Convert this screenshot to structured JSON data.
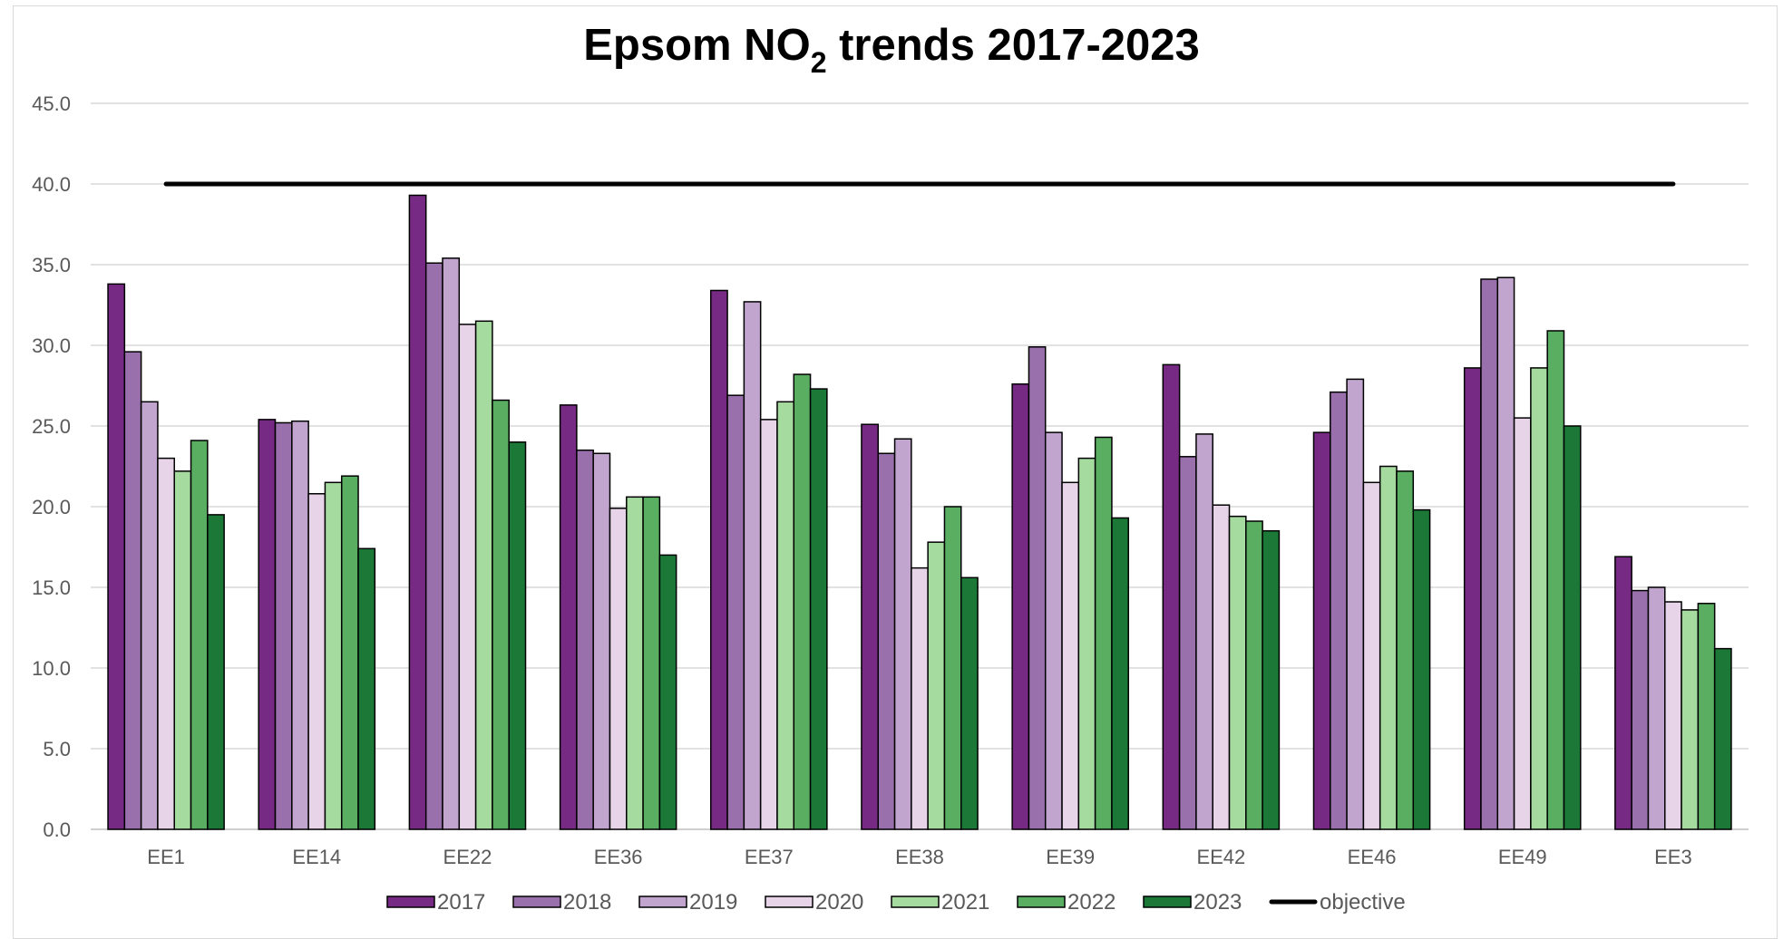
{
  "chart_data": {
    "type": "bar",
    "title_parts": {
      "pre": "Epsom NO",
      "sub": "2",
      "post": " trends 2017-2023"
    },
    "xlabel": "",
    "ylabel": "",
    "ylim": [
      0,
      45
    ],
    "yticks": [
      0,
      5,
      10,
      15,
      20,
      25,
      30,
      35,
      40,
      45
    ],
    "ytick_labels": [
      "0.0",
      "5.0",
      "10.0",
      "15.0",
      "20.0",
      "25.0",
      "30.0",
      "35.0",
      "40.0",
      "45.0"
    ],
    "grid": true,
    "legend_position": "bottom",
    "categories": [
      "EE1",
      "EE14",
      "EE22",
      "EE36",
      "EE37",
      "EE38",
      "EE39",
      "EE42",
      "EE46",
      "EE49",
      "EE3"
    ],
    "series": [
      {
        "name": "2017",
        "color": "#762a83",
        "values": [
          33.8,
          25.4,
          39.3,
          26.3,
          33.4,
          25.1,
          27.6,
          28.8,
          24.6,
          28.6,
          16.9
        ]
      },
      {
        "name": "2018",
        "color": "#9970ab",
        "values": [
          29.6,
          25.2,
          35.1,
          23.5,
          26.9,
          23.3,
          29.9,
          23.1,
          27.1,
          34.1,
          14.8
        ]
      },
      {
        "name": "2019",
        "color": "#c2a5cf",
        "values": [
          26.5,
          25.3,
          35.4,
          23.3,
          32.7,
          24.2,
          24.6,
          24.5,
          27.9,
          34.2,
          15.0
        ]
      },
      {
        "name": "2020",
        "color": "#e7d4e8",
        "values": [
          23.0,
          20.8,
          31.3,
          19.9,
          25.4,
          16.2,
          21.5,
          20.1,
          21.5,
          25.5,
          14.1
        ]
      },
      {
        "name": "2021",
        "color": "#a6dba0",
        "values": [
          22.2,
          21.5,
          31.5,
          20.6,
          26.5,
          17.8,
          23.0,
          19.4,
          22.5,
          28.6,
          13.6
        ]
      },
      {
        "name": "2022",
        "color": "#5aae61",
        "values": [
          24.1,
          21.9,
          26.6,
          20.6,
          28.2,
          20.0,
          24.3,
          19.1,
          22.2,
          30.9,
          14.0
        ]
      },
      {
        "name": "2023",
        "color": "#1b7837",
        "values": [
          19.5,
          17.4,
          24.0,
          17.0,
          27.3,
          15.6,
          19.3,
          18.5,
          19.8,
          25.0,
          11.2
        ]
      }
    ],
    "objective": {
      "name": "objective",
      "value": 40.0,
      "color": "#000000"
    }
  }
}
